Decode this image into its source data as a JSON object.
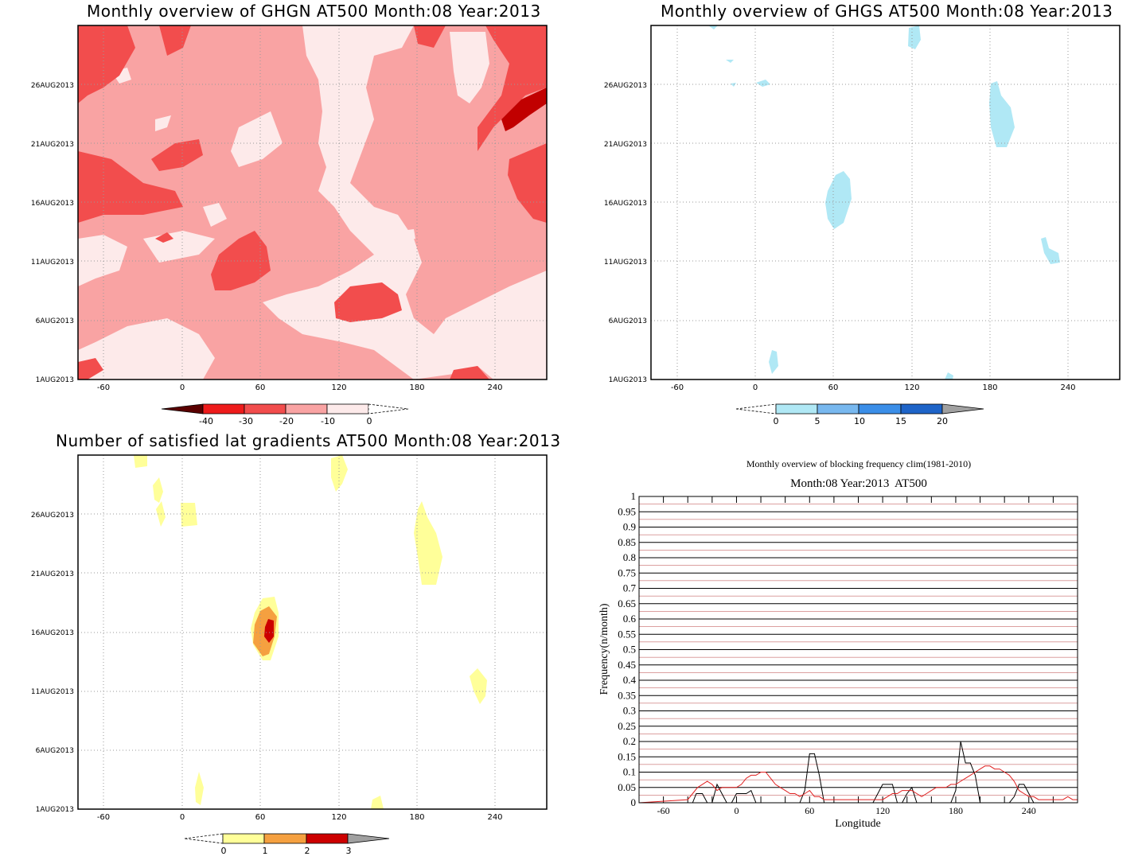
{
  "panels": {
    "ghgn": {
      "title": "Monthly overview of GHGN AT500 Month:08 Year:2013",
      "x_ticks": [
        "-60",
        "0",
        "60",
        "120",
        "180",
        "240"
      ],
      "y_ticks": [
        "1AUG2013",
        "6AUG2013",
        "11AUG2013",
        "16AUG2013",
        "21AUG2013",
        "26AUG2013"
      ],
      "colorbar_labels": [
        "-40",
        "-30",
        "-20",
        "-10",
        "0"
      ],
      "colors": {
        "c1": "#fdeaea",
        "c2": "#f9a3a3",
        "c3": "#f24d4d",
        "c4": "#ee1b1b",
        "c5": "#c10000",
        "c6": "#5a0000"
      }
    },
    "ghgs": {
      "title": "Monthly overview of GHGS AT500 Month:08 Year:2013",
      "x_ticks": [
        "-60",
        "0",
        "60",
        "120",
        "180",
        "240"
      ],
      "y_ticks": [
        "1AUG2013",
        "6AUG2013",
        "11AUG2013",
        "16AUG2013",
        "21AUG2013",
        "26AUG2013"
      ],
      "colorbar_labels": [
        "0",
        "5",
        "10",
        "15",
        "20"
      ],
      "colors": {
        "c1": "#b0e8f5",
        "c2": "#78b8ef",
        "c3": "#3b8ee8",
        "c4": "#1e64c8",
        "c5": "#a0a0a0"
      }
    },
    "lat": {
      "title": "Number of satisfied lat gradients AT500 Month:08 Year:2013",
      "x_ticks": [
        "-60",
        "0",
        "60",
        "120",
        "180",
        "240"
      ],
      "y_ticks": [
        "1AUG2013",
        "6AUG2013",
        "11AUG2013",
        "16AUG2013",
        "21AUG2013",
        "26AUG2013"
      ],
      "colorbar_labels": [
        "0",
        "1",
        "2",
        "3"
      ],
      "colors": {
        "c1": "#ffff99",
        "c2": "#f5a040",
        "c3": "#cc0000",
        "c4": "#a0a0a0"
      }
    }
  },
  "chart_data": [
    {
      "type": "heatmap",
      "title": "Monthly overview of GHGN AT500 Month:08 Year:2013",
      "x_range": [
        -80,
        280
      ],
      "x_ticks": [
        -60,
        0,
        60,
        120,
        180,
        240
      ],
      "y_ticks": [
        "1AUG2013",
        "6AUG2013",
        "11AUG2013",
        "16AUG2013",
        "21AUG2013",
        "26AUG2013"
      ],
      "levels": [
        -40,
        -30,
        -20,
        -10,
        0
      ]
    },
    {
      "type": "heatmap",
      "title": "Monthly overview of GHGS AT500 Month:08 Year:2013",
      "x_range": [
        -80,
        280
      ],
      "x_ticks": [
        -60,
        0,
        60,
        120,
        180,
        240
      ],
      "y_ticks": [
        "1AUG2013",
        "6AUG2013",
        "11AUG2013",
        "16AUG2013",
        "21AUG2013",
        "26AUG2013"
      ],
      "levels": [
        0,
        5,
        10,
        15,
        20
      ]
    },
    {
      "type": "heatmap",
      "title": "Number of satisfied lat gradients AT500 Month:08 Year:2013",
      "x_range": [
        -80,
        280
      ],
      "x_ticks": [
        -60,
        0,
        60,
        120,
        180,
        240
      ],
      "y_ticks": [
        "1AUG2013",
        "6AUG2013",
        "11AUG2013",
        "16AUG2013",
        "21AUG2013",
        "26AUG2013"
      ],
      "levels": [
        0,
        1,
        2,
        3
      ]
    },
    {
      "type": "line",
      "title": "Monthly overview of blocking frequency clim(1981-2010)",
      "subtitle": "Month:08 Year:2013  AT500",
      "xlabel": "Longitude",
      "ylabel": "Frequency(n/month)",
      "xlim": [
        -80,
        280
      ],
      "ylim": [
        0,
        1
      ],
      "x_ticks": [
        "-60",
        "0",
        "60",
        "120",
        "180",
        "240"
      ],
      "y_ticks": [
        "0",
        "0.05",
        "0.1",
        "0.15",
        "0.2",
        "0.25",
        "0.3",
        "0.35",
        "0.4",
        "0.45",
        "0.5",
        "0.55",
        "0.6",
        "0.65",
        "0.7",
        "0.75",
        "0.8",
        "0.85",
        "0.9",
        "0.95",
        "1"
      ],
      "series": [
        {
          "color": "#000000",
          "x": [
            -80,
            -40,
            -36,
            -33,
            -28,
            -24,
            -20,
            -16,
            -12,
            -8,
            -4,
            0,
            4,
            8,
            12,
            16,
            20,
            24,
            28,
            32,
            36,
            40,
            44,
            48,
            52,
            56,
            60,
            64,
            68,
            72,
            76,
            80,
            84,
            88,
            92,
            96,
            100,
            104,
            108,
            112,
            116,
            120,
            124,
            128,
            132,
            136,
            140,
            144,
            148,
            152,
            156,
            160,
            164,
            168,
            172,
            176,
            180,
            184,
            188,
            192,
            196,
            200,
            204,
            208,
            212,
            216,
            220,
            224,
            228,
            232,
            236,
            240,
            244,
            248,
            252,
            256,
            260,
            264,
            268,
            272,
            276,
            280
          ],
          "y": [
            0,
            0,
            0,
            0.03,
            0.03,
            0,
            0,
            0.06,
            0.03,
            0,
            0,
            0.03,
            0.03,
            0.03,
            0.04,
            0,
            0,
            0,
            0,
            0,
            0,
            0,
            0,
            0,
            0,
            0.04,
            0.16,
            0.16,
            0.09,
            0,
            0,
            0,
            0,
            0,
            0,
            0,
            0,
            0,
            0,
            0,
            0.03,
            0.06,
            0.06,
            0.06,
            0,
            0,
            0.03,
            0.05,
            0,
            0,
            0,
            0,
            0,
            0,
            0,
            0,
            0.04,
            0.2,
            0.13,
            0.13,
            0.09,
            0,
            0,
            0,
            0,
            0,
            0,
            0,
            0.02,
            0.06,
            0.06,
            0.03,
            0,
            0,
            0,
            0,
            0,
            0,
            0,
            0,
            0,
            0
          ]
        },
        {
          "color": "#e02020",
          "x": [
            -80,
            -40,
            -36,
            -32,
            -28,
            -24,
            -20,
            -16,
            -12,
            -8,
            -4,
            0,
            4,
            8,
            12,
            16,
            20,
            24,
            28,
            32,
            36,
            40,
            44,
            48,
            52,
            56,
            60,
            64,
            68,
            72,
            76,
            80,
            84,
            88,
            92,
            96,
            100,
            104,
            108,
            112,
            116,
            120,
            124,
            128,
            132,
            136,
            140,
            144,
            148,
            152,
            156,
            160,
            164,
            168,
            172,
            176,
            180,
            184,
            188,
            192,
            196,
            200,
            204,
            208,
            212,
            216,
            220,
            224,
            228,
            232,
            236,
            240,
            244,
            248,
            252,
            256,
            260,
            264,
            268,
            272,
            276,
            280
          ],
          "y": [
            0,
            0.01,
            0.03,
            0.05,
            0.06,
            0.07,
            0.06,
            0.04,
            0.05,
            0.05,
            0.05,
            0.05,
            0.06,
            0.08,
            0.09,
            0.09,
            0.1,
            0.1,
            0.08,
            0.06,
            0.05,
            0.04,
            0.03,
            0.03,
            0.02,
            0.03,
            0.04,
            0.02,
            0.02,
            0.01,
            0.01,
            0.01,
            0.01,
            0.01,
            0.01,
            0.01,
            0.01,
            0.01,
            0.01,
            0.01,
            0.01,
            0.01,
            0.02,
            0.03,
            0.03,
            0.04,
            0.04,
            0.04,
            0.03,
            0.02,
            0.03,
            0.04,
            0.05,
            0.05,
            0.05,
            0.06,
            0.06,
            0.07,
            0.08,
            0.09,
            0.1,
            0.11,
            0.12,
            0.12,
            0.11,
            0.11,
            0.1,
            0.09,
            0.07,
            0.04,
            0.03,
            0.02,
            0.02,
            0.01,
            0.01,
            0.01,
            0.01,
            0.01,
            0.01,
            0.02,
            0.01,
            0.01
          ]
        }
      ]
    }
  ]
}
